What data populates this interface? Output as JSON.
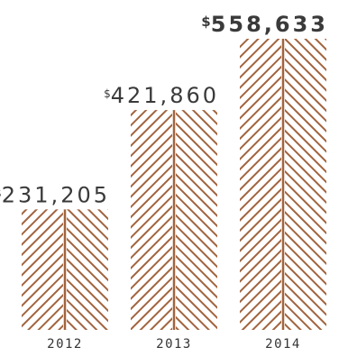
{
  "chart_data": {
    "type": "bar",
    "categories": [
      "2012",
      "2013",
      "2014"
    ],
    "values": [
      231205,
      421860,
      558633
    ],
    "value_labels": [
      "231,205",
      "421,860",
      "558,633"
    ],
    "currency_symbol": "$",
    "title": "",
    "xlabel": "",
    "ylabel": "",
    "ylim": [
      0,
      558633
    ],
    "grid": false,
    "legend": "none",
    "highlight_index": 2,
    "colors": {
      "bar_pattern": "#a1643f",
      "text": "#3a3a3a"
    }
  }
}
